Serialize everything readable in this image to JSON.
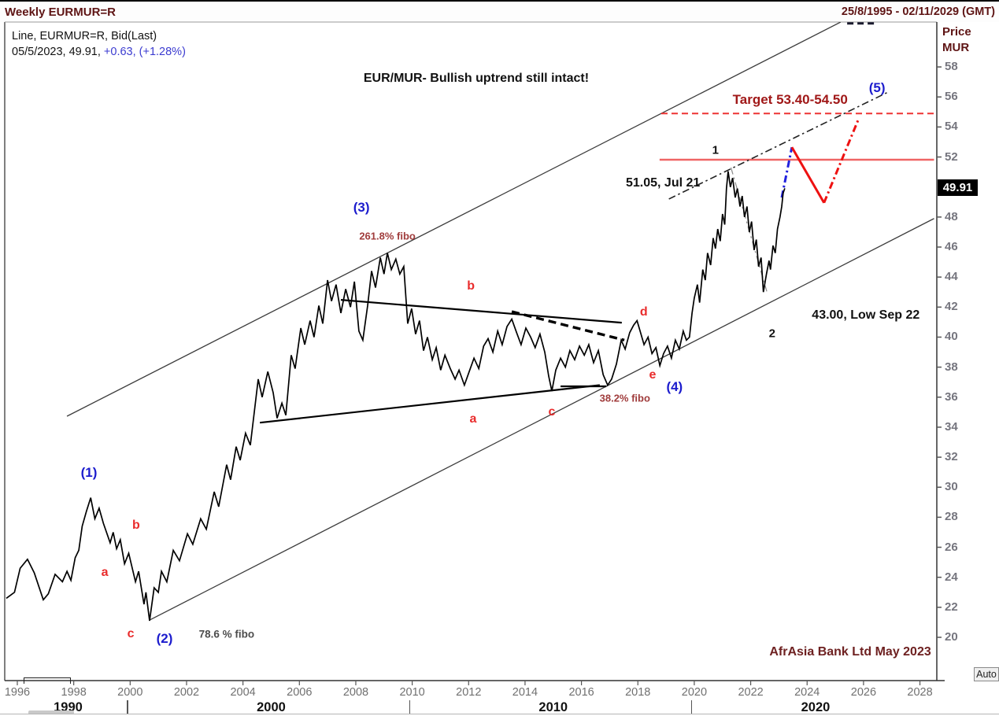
{
  "header": {
    "title": "Weekly EURMUR=R",
    "date_range": "25/8/1995 - 02/11/2029 (GMT)"
  },
  "legend": {
    "line1": "Line, EURMUR=R, Bid(Last)",
    "line2_black": "05/5/2023, 49.91,",
    "line2_change": " +0.63, (+1.28%)"
  },
  "axis": {
    "price_title_line1": "Price",
    "price_title_line2": "MUR",
    "price_tag": "49.91",
    "auto_button": "Auto"
  },
  "colors": {
    "maroon": "#5e1414",
    "wave_blue": "#1c1ccd",
    "wave_red": "#e92c2c",
    "fibo_darkred": "#a03c3c",
    "target_red": "#a01818",
    "line_red_solid": "#ef6565",
    "line_red_dashed": "#ee3333",
    "projection_blue": "#2222dd",
    "projection_red": "#ee1111",
    "channel_gray": "#3c3c3c",
    "price_line": "#000000"
  },
  "chart_data": {
    "type": "line",
    "title": "EUR/MUR- Bullish uptrend still intact!",
    "watermark": "AfrAsia Bank Ltd May 2023",
    "last_quote": {
      "date": "05/5/2023",
      "price": 49.91,
      "change": "+0.63",
      "change_pct": "+1.28%"
    },
    "y_axis": {
      "label": "Price MUR",
      "ticks": [
        58,
        56,
        54,
        52,
        48,
        46,
        44,
        42,
        40,
        38,
        36,
        34,
        32,
        30,
        28,
        26,
        24,
        22,
        20
      ],
      "range": [
        19,
        61
      ]
    },
    "x_axis": {
      "ticks": [
        1996,
        1998,
        2000,
        2002,
        2004,
        2006,
        2008,
        2010,
        2012,
        2014,
        2016,
        2018,
        2020,
        2022,
        2024,
        2026,
        2028
      ],
      "range": [
        1995.61,
        2028.6
      ],
      "decades": [
        {
          "label": "1990",
          "center": 1997.8
        },
        {
          "label": "2000",
          "center": 2005.0
        },
        {
          "label": "2010",
          "center": 2015.0
        },
        {
          "label": "2020",
          "center": 2024.3
        }
      ],
      "decade_boundaries": [
        2000,
        2010,
        2020
      ]
    },
    "price_series": [
      [
        1995.61,
        22.6
      ],
      [
        1995.9,
        23.0
      ],
      [
        1996.1,
        24.6
      ],
      [
        1996.36,
        25.2
      ],
      [
        1996.6,
        24.3
      ],
      [
        1996.92,
        22.5
      ],
      [
        1997.1,
        22.9
      ],
      [
        1997.34,
        24.2
      ],
      [
        1997.6,
        23.7
      ],
      [
        1997.76,
        24.4
      ],
      [
        1997.9,
        23.8
      ],
      [
        1998.05,
        25.3
      ],
      [
        1998.18,
        25.8
      ],
      [
        1998.3,
        27.4
      ],
      [
        1998.45,
        28.4
      ],
      [
        1998.6,
        29.3
      ],
      [
        1998.75,
        27.9
      ],
      [
        1998.9,
        28.6
      ],
      [
        1999.05,
        27.6
      ],
      [
        1999.29,
        26.3
      ],
      [
        1999.4,
        27.0
      ],
      [
        1999.52,
        25.9
      ],
      [
        1999.65,
        26.5
      ],
      [
        1999.8,
        24.9
      ],
      [
        1999.95,
        25.6
      ],
      [
        2000.19,
        23.7
      ],
      [
        2000.3,
        24.4
      ],
      [
        2000.49,
        22.2
      ],
      [
        2000.56,
        23.0
      ],
      [
        2000.69,
        21.1
      ],
      [
        2000.85,
        23.3
      ],
      [
        2001.0,
        23.0
      ],
      [
        2001.11,
        24.4
      ],
      [
        2001.3,
        23.7
      ],
      [
        2001.53,
        25.8
      ],
      [
        2001.75,
        25.1
      ],
      [
        2002.03,
        26.9
      ],
      [
        2002.22,
        26.2
      ],
      [
        2002.5,
        27.9
      ],
      [
        2002.7,
        27.2
      ],
      [
        2002.98,
        29.7
      ],
      [
        2003.14,
        28.7
      ],
      [
        2003.42,
        31.5
      ],
      [
        2003.56,
        30.5
      ],
      [
        2003.76,
        32.7
      ],
      [
        2003.9,
        31.8
      ],
      [
        2004.09,
        33.6
      ],
      [
        2004.26,
        32.8
      ],
      [
        2004.54,
        37.2
      ],
      [
        2004.68,
        36.0
      ],
      [
        2004.88,
        37.7
      ],
      [
        2005.07,
        36.3
      ],
      [
        2005.21,
        34.6
      ],
      [
        2005.38,
        35.6
      ],
      [
        2005.52,
        34.8
      ],
      [
        2005.71,
        38.8
      ],
      [
        2005.85,
        37.9
      ],
      [
        2006.05,
        40.6
      ],
      [
        2006.19,
        39.5
      ],
      [
        2006.38,
        41.1
      ],
      [
        2006.52,
        40.0
      ],
      [
        2006.69,
        42.1
      ],
      [
        2006.83,
        40.9
      ],
      [
        2007.0,
        43.8
      ],
      [
        2007.14,
        42.4
      ],
      [
        2007.3,
        43.5
      ],
      [
        2007.47,
        41.6
      ],
      [
        2007.64,
        43.2
      ],
      [
        2007.81,
        42.0
      ],
      [
        2007.95,
        43.7
      ],
      [
        2008.11,
        40.4
      ],
      [
        2008.25,
        39.8
      ],
      [
        2008.42,
        42.1
      ],
      [
        2008.56,
        44.4
      ],
      [
        2008.7,
        43.3
      ],
      [
        2008.87,
        45.3
      ],
      [
        2009.0,
        44.2
      ],
      [
        2009.12,
        45.6
      ],
      [
        2009.26,
        44.5
      ],
      [
        2009.42,
        45.2
      ],
      [
        2009.56,
        44.2
      ],
      [
        2009.7,
        44.7
      ],
      [
        2009.84,
        40.9
      ],
      [
        2009.98,
        41.9
      ],
      [
        2010.12,
        40.2
      ],
      [
        2010.26,
        41.1
      ],
      [
        2010.4,
        39.1
      ],
      [
        2010.54,
        40.0
      ],
      [
        2010.71,
        38.5
      ],
      [
        2010.85,
        39.3
      ],
      [
        2011.01,
        37.8
      ],
      [
        2011.16,
        38.8
      ],
      [
        2011.35,
        37.9
      ],
      [
        2011.52,
        37.2
      ],
      [
        2011.66,
        37.8
      ],
      [
        2011.85,
        36.8
      ],
      [
        2012.02,
        37.7
      ],
      [
        2012.19,
        38.6
      ],
      [
        2012.36,
        37.9
      ],
      [
        2012.53,
        39.4
      ],
      [
        2012.69,
        39.9
      ],
      [
        2012.86,
        39.0
      ],
      [
        2013.03,
        40.4
      ],
      [
        2013.19,
        39.5
      ],
      [
        2013.36,
        40.7
      ],
      [
        2013.53,
        41.2
      ],
      [
        2013.7,
        40.3
      ],
      [
        2013.86,
        39.5
      ],
      [
        2014.03,
        40.6
      ],
      [
        2014.2,
        40.0
      ],
      [
        2014.36,
        39.3
      ],
      [
        2014.53,
        40.2
      ],
      [
        2014.7,
        39.0
      ],
      [
        2014.84,
        37.4
      ],
      [
        2014.95,
        36.4
      ],
      [
        2015.09,
        37.8
      ],
      [
        2015.26,
        38.6
      ],
      [
        2015.43,
        38.0
      ],
      [
        2015.59,
        39.1
      ],
      [
        2015.76,
        38.5
      ],
      [
        2015.93,
        39.4
      ],
      [
        2016.1,
        38.8
      ],
      [
        2016.26,
        39.5
      ],
      [
        2016.43,
        38.3
      ],
      [
        2016.6,
        39.1
      ],
      [
        2016.77,
        37.5
      ],
      [
        2016.93,
        36.8
      ],
      [
        2017.07,
        37.2
      ],
      [
        2017.24,
        38.2
      ],
      [
        2017.41,
        39.8
      ],
      [
        2017.55,
        39.2
      ],
      [
        2017.71,
        40.3
      ],
      [
        2017.85,
        40.8
      ],
      [
        2017.97,
        41.1
      ],
      [
        2018.08,
        40.4
      ],
      [
        2018.22,
        39.5
      ],
      [
        2018.36,
        40.0
      ],
      [
        2018.5,
        38.9
      ],
      [
        2018.64,
        39.3
      ],
      [
        2018.78,
        38.1
      ],
      [
        2018.91,
        38.9
      ],
      [
        2019.05,
        39.4
      ],
      [
        2019.19,
        38.6
      ],
      [
        2019.33,
        39.8
      ],
      [
        2019.47,
        39.2
      ],
      [
        2019.61,
        40.4
      ],
      [
        2019.72,
        39.8
      ],
      [
        2019.83,
        40.0
      ],
      [
        2019.92,
        41.6
      ],
      [
        2020.0,
        42.6
      ],
      [
        2020.11,
        43.5
      ],
      [
        2020.19,
        42.3
      ],
      [
        2020.3,
        44.5
      ],
      [
        2020.39,
        43.8
      ],
      [
        2020.47,
        45.6
      ],
      [
        2020.58,
        44.8
      ],
      [
        2020.67,
        46.6
      ],
      [
        2020.75,
        45.9
      ],
      [
        2020.83,
        47.2
      ],
      [
        2020.92,
        46.4
      ],
      [
        2021.0,
        48.2
      ],
      [
        2021.08,
        47.5
      ],
      [
        2021.14,
        49.9
      ],
      [
        2021.2,
        51.05
      ],
      [
        2021.28,
        50.0
      ],
      [
        2021.36,
        50.6
      ],
      [
        2021.45,
        49.3
      ],
      [
        2021.53,
        49.9
      ],
      [
        2021.62,
        48.7
      ],
      [
        2021.7,
        49.4
      ],
      [
        2021.78,
        48.0
      ],
      [
        2021.87,
        48.7
      ],
      [
        2021.95,
        47.0
      ],
      [
        2022.03,
        47.7
      ],
      [
        2022.12,
        45.8
      ],
      [
        2022.2,
        46.5
      ],
      [
        2022.28,
        44.7
      ],
      [
        2022.37,
        45.3
      ],
      [
        2022.45,
        43.0
      ],
      [
        2022.56,
        44.2
      ],
      [
        2022.65,
        45.1
      ],
      [
        2022.7,
        44.5
      ],
      [
        2022.79,
        46.1
      ],
      [
        2022.87,
        45.6
      ],
      [
        2022.95,
        47.2
      ],
      [
        2023.04,
        48.0
      ],
      [
        2023.1,
        48.7
      ],
      [
        2023.15,
        49.6
      ],
      [
        2023.21,
        49.91
      ]
    ],
    "lines": [
      {
        "id": "channel-lower",
        "style": "solid",
        "color": "#3c3c3c",
        "width": 1.3,
        "points": [
          [
            2000.69,
            21.15
          ],
          [
            2028.5,
            47.9
          ]
        ]
      },
      {
        "id": "channel-upper",
        "style": "solid",
        "color": "#3c3c3c",
        "width": 1.3,
        "points": [
          [
            1997.76,
            34.73
          ],
          [
            2025.19,
            60.99
          ]
        ]
      },
      {
        "id": "triangle-upper-bd",
        "style": "solid",
        "color": "#000000",
        "width": 2.2,
        "points": [
          [
            2007.47,
            42.48
          ],
          [
            2017.43,
            40.96
          ]
        ]
      },
      {
        "id": "triangle-lower-ac",
        "style": "solid",
        "color": "#000000",
        "width": 2.2,
        "points": [
          [
            2004.6,
            34.3
          ],
          [
            2016.65,
            36.8
          ]
        ]
      },
      {
        "id": "inner-dashed-bd",
        "style": "heavydash",
        "color": "#000000",
        "width": 3.4,
        "points": [
          [
            2013.53,
            41.7
          ],
          [
            2017.52,
            39.8
          ]
        ]
      },
      {
        "id": "fibo-382-level",
        "style": "solid",
        "color": "#000000",
        "width": 2.2,
        "points": [
          [
            2015.26,
            36.72
          ],
          [
            2016.88,
            36.72
          ]
        ]
      },
      {
        "id": "target-dashed-red",
        "style": "dashed",
        "color": "#ee3333",
        "width": 2,
        "points": [
          [
            2018.83,
            54.9
          ],
          [
            2028.6,
            54.9
          ]
        ]
      },
      {
        "id": "resistance-solid-red",
        "style": "solid",
        "color": "#ef6565",
        "width": 2.5,
        "points": [
          [
            2018.77,
            51.82
          ],
          [
            2028.5,
            51.82
          ]
        ]
      },
      {
        "id": "dashdot-to-wave5",
        "style": "dashdot",
        "color": "#222222",
        "width": 1.6,
        "points": [
          [
            2019.1,
            49.2
          ],
          [
            2026.9,
            56.35
          ]
        ]
      },
      {
        "id": "fan-from-peak",
        "style": "dashdot",
        "color": "#909090",
        "width": 1.3,
        "points": [
          [
            2021.3,
            51.3
          ],
          [
            2022.57,
            43.05
          ]
        ]
      },
      {
        "id": "projection-blue-up",
        "style": "dashdot",
        "color": "#2222dd",
        "width": 3,
        "points": [
          [
            2023.1,
            49.3
          ],
          [
            2023.46,
            52.65
          ]
        ]
      },
      {
        "id": "projection-red-down",
        "style": "solid",
        "color": "#ee1111",
        "width": 3,
        "points": [
          [
            2023.46,
            52.65
          ],
          [
            2024.6,
            48.95
          ]
        ]
      },
      {
        "id": "projection-red-up",
        "style": "dashdot",
        "color": "#ee1111",
        "width": 3,
        "points": [
          [
            2024.6,
            48.95
          ],
          [
            2025.84,
            54.6
          ]
        ]
      },
      {
        "id": "clipped-text-fragment",
        "style": "dashed",
        "color": "#1a1a2e",
        "width": 3,
        "points": [
          [
            2025.42,
            60.9
          ],
          [
            2026.45,
            60.9
          ]
        ]
      }
    ],
    "annotations": [
      {
        "id": "wave-1",
        "text": "(1)",
        "cls": "blue",
        "year": 1998.54,
        "price": 30.96
      },
      {
        "id": "abc-b-left",
        "text": "b",
        "cls": "red",
        "year": 2000.21,
        "price": 27.44
      },
      {
        "id": "abc-a-left",
        "text": "a",
        "cls": "red",
        "year": 1999.1,
        "price": 24.3
      },
      {
        "id": "abc-c-left",
        "text": "c",
        "cls": "red",
        "year": 2000.02,
        "price": 20.21
      },
      {
        "id": "wave-2",
        "text": "(2)",
        "cls": "blue",
        "year": 2001.22,
        "price": 19.9
      },
      {
        "id": "fibo-786",
        "text": "78.6 % fibo",
        "cls": "grayfibo",
        "year": 2003.42,
        "price": 20.21
      },
      {
        "id": "wave-3",
        "text": "(3)",
        "cls": "blue",
        "year": 2008.2,
        "price": 48.62
      },
      {
        "id": "fibo-2618",
        "text": "261.8% fibo",
        "cls": "fibo",
        "year": 2009.12,
        "price": 46.73
      },
      {
        "id": "tri-b",
        "text": "b",
        "cls": "red",
        "year": 2012.08,
        "price": 43.38
      },
      {
        "id": "tri-a",
        "text": "a",
        "cls": "red",
        "year": 2012.16,
        "price": 34.52
      },
      {
        "id": "tri-c",
        "text": "c",
        "cls": "red",
        "year": 2014.95,
        "price": 34.99
      },
      {
        "id": "tri-d",
        "text": "d",
        "cls": "red",
        "year": 2018.21,
        "price": 41.65
      },
      {
        "id": "tri-e",
        "text": "e",
        "cls": "red",
        "year": 2018.52,
        "price": 37.46
      },
      {
        "id": "wave-4",
        "text": "(4)",
        "cls": "blue",
        "year": 2019.3,
        "price": 36.67
      },
      {
        "id": "fibo-382",
        "text": "38.2% fibo",
        "cls": "fibo",
        "year": 2017.54,
        "price": 35.93
      },
      {
        "id": "high-note",
        "text": "51.05, Jul 21",
        "cls": "blackbold",
        "year": 2018.89,
        "price": 50.25
      },
      {
        "id": "minor-1",
        "text": "1",
        "cls": "blacksmall",
        "year": 2020.75,
        "price": 52.45
      },
      {
        "id": "minor-2",
        "text": "2",
        "cls": "blacksmall",
        "year": 2022.76,
        "price": 40.23
      },
      {
        "id": "low-note",
        "text": "43.00, Low Sep 22",
        "cls": "blackbold",
        "year": 2026.08,
        "price": 41.44
      },
      {
        "id": "target-note",
        "text": "Target 53.40-54.50",
        "cls": "target",
        "year": 2023.4,
        "price": 55.8
      },
      {
        "id": "wave-5",
        "text": "(5)",
        "cls": "blue",
        "year": 2026.48,
        "price": 56.59
      },
      {
        "id": "chart-title",
        "text": "EUR/MUR- Bullish uptrend still intact!",
        "cls": "title",
        "year": 2012.27,
        "price": 57.22
      },
      {
        "id": "watermark",
        "text": "AfrAsia Bank Ltd May 2023",
        "cls": "watermark",
        "year": 2025.53,
        "price": 19.0
      }
    ]
  }
}
